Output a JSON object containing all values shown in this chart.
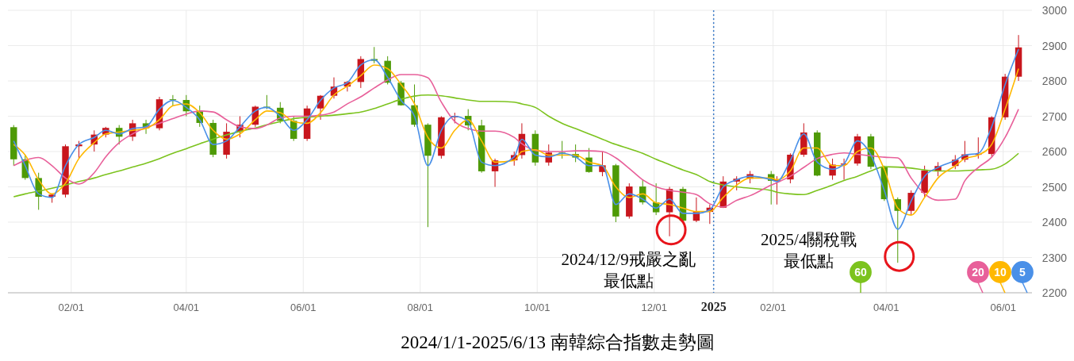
{
  "chart_data": {
    "type": "candlestick",
    "title": "2024/1/1-2025/6/13  南韓綜合指數走勢圖",
    "x": [
      "2024-01-02",
      "2024-01-08",
      "2024-01-15",
      "2024-01-22",
      "2024-01-29",
      "2024-02-05",
      "2024-02-13",
      "2024-02-19",
      "2024-02-26",
      "2024-03-04",
      "2024-03-11",
      "2024-03-18",
      "2024-03-25",
      "2024-04-01",
      "2024-04-08",
      "2024-04-15",
      "2024-04-22",
      "2024-04-29",
      "2024-05-07",
      "2024-05-13",
      "2024-05-20",
      "2024-05-27",
      "2024-06-03",
      "2024-06-10",
      "2024-06-17",
      "2024-06-24",
      "2024-07-01",
      "2024-07-08",
      "2024-07-15",
      "2024-07-22",
      "2024-07-29",
      "2024-08-05",
      "2024-08-12",
      "2024-08-19",
      "2024-08-26",
      "2024-09-02",
      "2024-09-09",
      "2024-09-19",
      "2024-09-23",
      "2024-09-30",
      "2024-10-07",
      "2024-10-14",
      "2024-10-21",
      "2024-10-28",
      "2024-11-04",
      "2024-11-11",
      "2024-11-18",
      "2024-11-25",
      "2024-12-02",
      "2024-12-09",
      "2024-12-16",
      "2024-12-23",
      "2024-12-30",
      "2025-01-06",
      "2025-01-13",
      "2025-01-20",
      "2025-01-31",
      "2025-02-03",
      "2025-02-10",
      "2025-02-17",
      "2025-02-24",
      "2025-03-04",
      "2025-03-10",
      "2025-03-17",
      "2025-03-24",
      "2025-03-31",
      "2025-04-07",
      "2025-04-14",
      "2025-04-21",
      "2025-04-28",
      "2025-05-07",
      "2025-05-12",
      "2025-05-19",
      "2025-05-26",
      "2025-06-02",
      "2025-06-09"
    ],
    "xlim": [
      "2023-12-30",
      "2025-06-16"
    ],
    "xticks": [
      {
        "value": "2024-02-01",
        "label": "02/01"
      },
      {
        "value": "2024-04-01",
        "label": "04/01"
      },
      {
        "value": "2024-06-01",
        "label": "06/01"
      },
      {
        "value": "2024-08-01",
        "label": "08/01"
      },
      {
        "value": "2024-10-01",
        "label": "10/01"
      },
      {
        "value": "2024-12-01",
        "label": "12/01"
      },
      {
        "value": "2025-01-01",
        "label": "2025"
      },
      {
        "value": "2025-02-01",
        "label": "02/01"
      },
      {
        "value": "2025-04-01",
        "label": "04/01"
      },
      {
        "value": "2025-06-01",
        "label": "06/01"
      }
    ],
    "ylim": [
      2200,
      3000
    ],
    "yticks": [
      2200,
      2300,
      2400,
      2500,
      2600,
      2700,
      2800,
      2900,
      3000
    ],
    "grid": true,
    "legend": "bottom right",
    "ohlc": [
      [
        2669,
        2675,
        2560,
        2578
      ],
      [
        2578,
        2590,
        2520,
        2525
      ],
      [
        2525,
        2540,
        2435,
        2472
      ],
      [
        2472,
        2480,
        2455,
        2478
      ],
      [
        2478,
        2620,
        2470,
        2615
      ],
      [
        2615,
        2630,
        2580,
        2620
      ],
      [
        2620,
        2660,
        2600,
        2648
      ],
      [
        2648,
        2670,
        2640,
        2667
      ],
      [
        2667,
        2675,
        2620,
        2642
      ],
      [
        2642,
        2690,
        2630,
        2680
      ],
      [
        2680,
        2690,
        2650,
        2666
      ],
      [
        2666,
        2755,
        2660,
        2748
      ],
      [
        2748,
        2760,
        2730,
        2746
      ],
      [
        2746,
        2760,
        2700,
        2714
      ],
      [
        2714,
        2730,
        2670,
        2681
      ],
      [
        2681,
        2690,
        2584,
        2591
      ],
      [
        2591,
        2680,
        2580,
        2656
      ],
      [
        2656,
        2700,
        2640,
        2676
      ],
      [
        2676,
        2730,
        2670,
        2727
      ],
      [
        2727,
        2760,
        2720,
        2724
      ],
      [
        2724,
        2740,
        2680,
        2687
      ],
      [
        2687,
        2700,
        2630,
        2636
      ],
      [
        2636,
        2730,
        2630,
        2722
      ],
      [
        2722,
        2760,
        2690,
        2758
      ],
      [
        2758,
        2810,
        2750,
        2784
      ],
      [
        2784,
        2800,
        2770,
        2797
      ],
      [
        2797,
        2870,
        2780,
        2862
      ],
      [
        2862,
        2896,
        2850,
        2857
      ],
      [
        2857,
        2870,
        2790,
        2795
      ],
      [
        2795,
        2800,
        2730,
        2731
      ],
      [
        2731,
        2790,
        2670,
        2676
      ],
      [
        2676,
        2680,
        2386,
        2588
      ],
      [
        2588,
        2700,
        2580,
        2697
      ],
      [
        2697,
        2710,
        2680,
        2701
      ],
      [
        2701,
        2720,
        2660,
        2674
      ],
      [
        2674,
        2690,
        2540,
        2544
      ],
      [
        2544,
        2580,
        2500,
        2575
      ],
      [
        2575,
        2600,
        2560,
        2590
      ],
      [
        2590,
        2680,
        2580,
        2650
      ],
      [
        2650,
        2660,
        2560,
        2569
      ],
      [
        2569,
        2620,
        2560,
        2597
      ],
      [
        2597,
        2630,
        2580,
        2593
      ],
      [
        2593,
        2620,
        2570,
        2583
      ],
      [
        2583,
        2610,
        2540,
        2542
      ],
      [
        2542,
        2600,
        2530,
        2561
      ],
      [
        2561,
        2565,
        2400,
        2416
      ],
      [
        2416,
        2510,
        2410,
        2501
      ],
      [
        2501,
        2520,
        2450,
        2456
      ],
      [
        2456,
        2510,
        2420,
        2428
      ],
      [
        2428,
        2500,
        2360,
        2494
      ],
      [
        2494,
        2500,
        2400,
        2404
      ],
      [
        2404,
        2470,
        2400,
        2429
      ],
      [
        2429,
        2450,
        2395,
        2441
      ],
      [
        2441,
        2530,
        2440,
        2515
      ],
      [
        2515,
        2530,
        2490,
        2523
      ],
      [
        2523,
        2545,
        2510,
        2536
      ],
      [
        2536,
        2545,
        2450,
        2517
      ],
      [
        2517,
        2530,
        2450,
        2521
      ],
      [
        2521,
        2595,
        2510,
        2591
      ],
      [
        2591,
        2680,
        2585,
        2654
      ],
      [
        2654,
        2660,
        2530,
        2532
      ],
      [
        2532,
        2580,
        2520,
        2563
      ],
      [
        2563,
        2580,
        2520,
        2566
      ],
      [
        2566,
        2650,
        2560,
        2643
      ],
      [
        2643,
        2650,
        2550,
        2557
      ],
      [
        2557,
        2560,
        2460,
        2465
      ],
      [
        2465,
        2470,
        2285,
        2432
      ],
      [
        2432,
        2490,
        2420,
        2483
      ],
      [
        2483,
        2560,
        2470,
        2546
      ],
      [
        2546,
        2570,
        2530,
        2559
      ],
      [
        2559,
        2590,
        2550,
        2577
      ],
      [
        2577,
        2630,
        2570,
        2592
      ],
      [
        2592,
        2640,
        2580,
        2593
      ],
      [
        2593,
        2700,
        2585,
        2697
      ],
      [
        2697,
        2820,
        2690,
        2812
      ],
      [
        2812,
        2930,
        2800,
        2895
      ]
    ],
    "colors": [
      "#4e9a06",
      "#4e9a06",
      "#4e9a06",
      "#c8161d",
      "#c8161d",
      "#c8161d",
      "#c8161d",
      "#c8161d",
      "#4e9a06",
      "#c8161d",
      "#4e9a06",
      "#c8161d",
      "#4e9a06",
      "#4e9a06",
      "#4e9a06",
      "#4e9a06",
      "#c8161d",
      "#c8161d",
      "#c8161d",
      "#4e9a06",
      "#4e9a06",
      "#4e9a06",
      "#c8161d",
      "#c8161d",
      "#c8161d",
      "#c8161d",
      "#c8161d",
      "#4e9a06",
      "#4e9a06",
      "#4e9a06",
      "#4e9a06",
      "#4e9a06",
      "#c8161d",
      "#c8161d",
      "#4e9a06",
      "#4e9a06",
      "#c8161d",
      "#c8161d",
      "#c8161d",
      "#4e9a06",
      "#c8161d",
      "#4e9a06",
      "#4e9a06",
      "#4e9a06",
      "#c8161d",
      "#4e9a06",
      "#c8161d",
      "#4e9a06",
      "#4e9a06",
      "#c8161d",
      "#4e9a06",
      "#c8161d",
      "#c8161d",
      "#c8161d",
      "#c8161d",
      "#c8161d",
      "#4e9a06",
      "#c8161d",
      "#c8161d",
      "#c8161d",
      "#4e9a06",
      "#c8161d",
      "#c8161d",
      "#c8161d",
      "#4e9a06",
      "#4e9a06",
      "#4e9a06",
      "#c8161d",
      "#c8161d",
      "#c8161d",
      "#c8161d",
      "#c8161d",
      "#c8161d",
      "#c8161d",
      "#c8161d",
      "#c8161d"
    ],
    "series": [
      {
        "name": "60",
        "type": "line",
        "color": "#7cc31e",
        "values": [
          2472,
          2480,
          2488,
          2496,
          2505,
          2515,
          2525,
          2535,
          2545,
          2556,
          2567,
          2580,
          2595,
          2608,
          2622,
          2635,
          2647,
          2657,
          2667,
          2676,
          2685,
          2693,
          2697,
          2700,
          2703,
          2707,
          2712,
          2722,
          2735,
          2748,
          2757,
          2760,
          2758,
          2752,
          2746,
          2742,
          2742,
          2740,
          2735,
          2725,
          2700,
          2680,
          2665,
          2650,
          2635,
          2620,
          2608,
          2595,
          2578,
          2563,
          2548,
          2535,
          2515,
          2505,
          2500,
          2496,
          2490,
          2485,
          2480,
          2478,
          2490,
          2505,
          2518,
          2530,
          2545,
          2557,
          2556,
          2553,
          2548,
          2545,
          2545,
          2546,
          2548,
          2550,
          2565,
          2595
        ]
      },
      {
        "name": "20",
        "type": "line",
        "color": "#e8609a",
        "values": [
          2560,
          2575,
          2583,
          2560,
          2525,
          2508,
          2540,
          2585,
          2625,
          2650,
          2668,
          2680,
          2693,
          2706,
          2715,
          2712,
          2690,
          2670,
          2665,
          2675,
          2695,
          2700,
          2700,
          2703,
          2712,
          2735,
          2755,
          2780,
          2803,
          2818,
          2818,
          2809,
          2740,
          2685,
          2665,
          2658,
          2658,
          2640,
          2622,
          2603,
          2600,
          2600,
          2602,
          2602,
          2600,
          2582,
          2552,
          2520,
          2500,
          2490,
          2485,
          2478,
          2452,
          2443,
          2462,
          2475,
          2505,
          2512,
          2530,
          2555,
          2580,
          2592,
          2596,
          2592,
          2588,
          2584,
          2582,
          2525,
          2480,
          2462,
          2465,
          2517,
          2555,
          2584,
          2640,
          2720
        ]
      },
      {
        "name": "10",
        "type": "line",
        "color": "#ffb800",
        "values": [
          2620,
          2590,
          2520,
          2480,
          2510,
          2580,
          2625,
          2650,
          2655,
          2660,
          2665,
          2690,
          2730,
          2735,
          2710,
          2660,
          2635,
          2650,
          2690,
          2715,
          2710,
          2685,
          2680,
          2710,
          2760,
          2785,
          2815,
          2845,
          2835,
          2790,
          2735,
          2640,
          2610,
          2660,
          2690,
          2630,
          2570,
          2575,
          2600,
          2605,
          2590,
          2590,
          2590,
          2570,
          2560,
          2500,
          2470,
          2480,
          2455,
          2450,
          2440,
          2430,
          2430,
          2470,
          2505,
          2525,
          2525,
          2520,
          2545,
          2610,
          2610,
          2560,
          2560,
          2600,
          2610,
          2550,
          2440,
          2420,
          2470,
          2525,
          2560,
          2580,
          2590,
          2620,
          2720,
          2835
        ]
      },
      {
        "name": "5",
        "type": "line",
        "color": "#4a90e8",
        "values": [
          2630,
          2560,
          2480,
          2470,
          2560,
          2620,
          2640,
          2660,
          2650,
          2665,
          2670,
          2720,
          2745,
          2725,
          2690,
          2620,
          2630,
          2670,
          2715,
          2725,
          2700,
          2660,
          2690,
          2745,
          2780,
          2795,
          2845,
          2860,
          2810,
          2745,
          2700,
          2560,
          2660,
          2700,
          2685,
          2570,
          2560,
          2585,
          2635,
          2590,
          2585,
          2595,
          2585,
          2560,
          2560,
          2450,
          2480,
          2465,
          2440,
          2465,
          2425,
          2425,
          2435,
          2500,
          2520,
          2530,
          2520,
          2515,
          2575,
          2650,
          2570,
          2550,
          2565,
          2630,
          2590,
          2490,
          2380,
          2460,
          2530,
          2555,
          2575,
          2590,
          2595,
          2670,
          2790,
          2890
        ]
      }
    ],
    "ref_lines": [
      {
        "axis": "x",
        "value": "2025-01-01",
        "color": "#3d7cc9",
        "line_style": "dotted"
      }
    ],
    "annotations": [
      {
        "text": "2024/12/9戒嚴之亂最低點",
        "x": "2024-12-09",
        "y": 2360
      },
      {
        "text": "2025/4關稅戰最低點",
        "x": "2025-04-07",
        "y": 2285
      }
    ]
  }
}
